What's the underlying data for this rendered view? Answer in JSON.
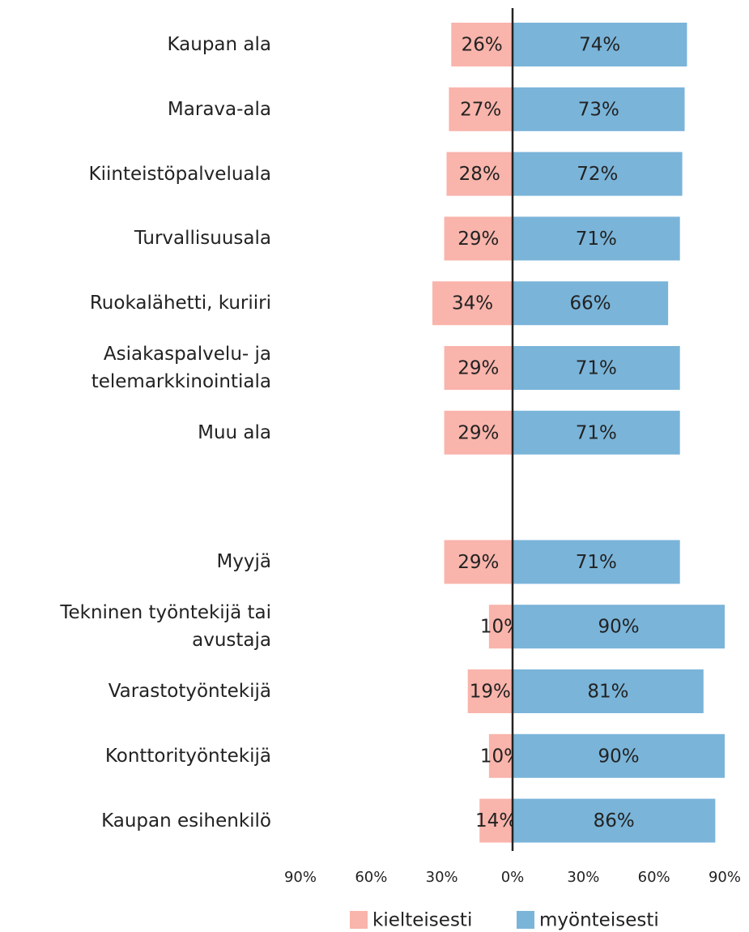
{
  "chart_data": {
    "type": "diverging_bar",
    "categories": [
      "Kaupan ala",
      "Marava-ala",
      "Kiinteistöpalveluala",
      "Turvallisuusala",
      "Ruokalähetti, kuriiri",
      "Asiakaspalvelu- ja\ntelemarkkinointiala",
      "Muu ala",
      null,
      "Myyjä",
      "Tekninen työntekijä tai\navustaja",
      "Varastotyöntekijä",
      "Konttorityöntekijä",
      "Kaupan esihenkilö"
    ],
    "series": [
      {
        "name": "kielteisesti",
        "color": "#f9b4ab",
        "values": [
          -26,
          -27,
          -28,
          -29,
          -34,
          -29,
          -29,
          null,
          -29,
          -10,
          -19,
          -10,
          -14
        ],
        "value_labels": [
          "26%",
          "27%",
          "28%",
          "29%",
          "34%",
          "29%",
          "29%",
          null,
          "29%",
          "10%",
          "19%",
          "10%",
          "14%"
        ]
      },
      {
        "name": "myönteisesti",
        "color": "#7ab4d9",
        "values": [
          74,
          73,
          72,
          71,
          66,
          71,
          71,
          null,
          71,
          90,
          81,
          90,
          86
        ],
        "value_labels": [
          "74%",
          "73%",
          "72%",
          "71%",
          "66%",
          "71%",
          "71%",
          null,
          "71%",
          "90%",
          "81%",
          "90%",
          "86%"
        ]
      }
    ],
    "xlim": [
      -90,
      90
    ],
    "xticks": [
      {
        "value": -90,
        "label": "90%"
      },
      {
        "value": -60,
        "label": "60%"
      },
      {
        "value": -30,
        "label": "30%"
      },
      {
        "value": 0,
        "label": "0%"
      },
      {
        "value": 30,
        "label": "30%"
      },
      {
        "value": 60,
        "label": "60%"
      },
      {
        "value": 90,
        "label": "90%"
      }
    ],
    "legend": "bottom"
  }
}
